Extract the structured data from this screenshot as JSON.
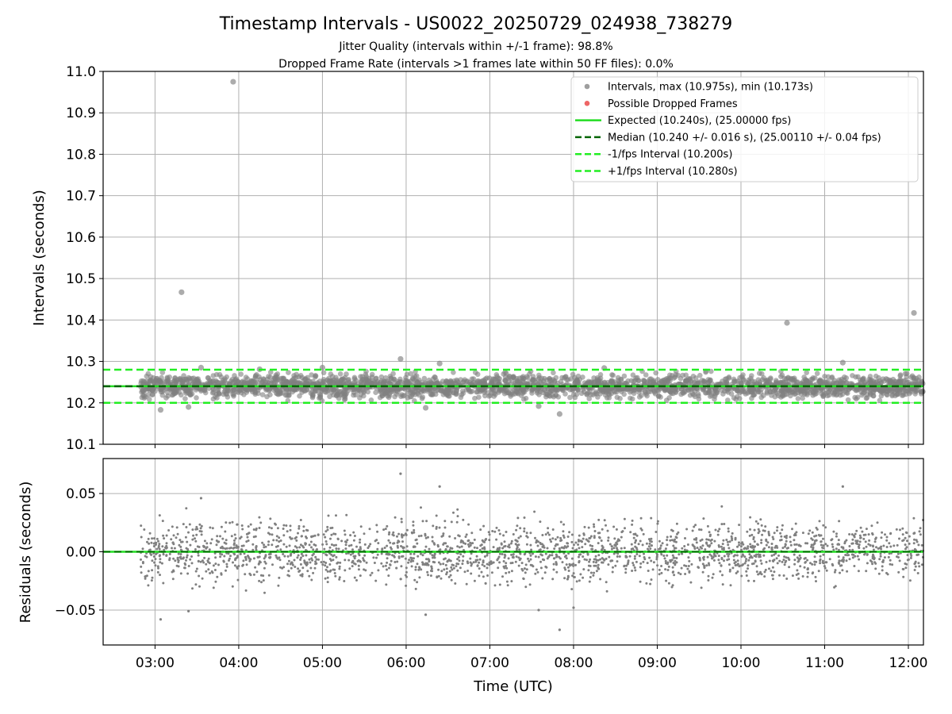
{
  "chart_data": {
    "type": "scatter",
    "title": "Timestamp Intervals - US0022_20250729_024938_738279",
    "subtitle_1": "Jitter Quality (intervals within +/-1 frame): 98.8%",
    "subtitle_2": "Dropped Frame Rate (intervals >1 frames late within 50 FF files): 0.0%",
    "xlabel": "Time (UTC)",
    "grid": true,
    "x_ticks": [
      "03:00",
      "04:00",
      "05:00",
      "06:00",
      "07:00",
      "08:00",
      "09:00",
      "10:00",
      "11:00",
      "12:00"
    ],
    "x_range_hours": [
      2.38,
      12.18
    ],
    "data_x_range_hours": [
      2.83,
      12.18
    ],
    "top_panel": {
      "ylabel": "Intervals (seconds)",
      "ylim": [
        10.1,
        11.0
      ],
      "y_ticks": [
        "10.1",
        "10.2",
        "10.3",
        "10.4",
        "10.5",
        "10.6",
        "10.7",
        "10.8",
        "10.9",
        "11.0"
      ],
      "expected": 10.24,
      "median": 10.24,
      "minus_interval": 10.2,
      "plus_interval": 10.28,
      "bulk_band": [
        10.2,
        10.28
      ],
      "outliers": [
        {
          "x": "03:56",
          "y": 10.975
        },
        {
          "x": "03:19",
          "y": 10.467
        },
        {
          "x": "10:33",
          "y": 10.393
        },
        {
          "x": "12:04",
          "y": 10.417
        },
        {
          "x": "05:56",
          "y": 10.306
        },
        {
          "x": "06:24",
          "y": 10.295
        },
        {
          "x": "11:13",
          "y": 10.297
        },
        {
          "x": "03:04",
          "y": 10.183
        },
        {
          "x": "03:24",
          "y": 10.19
        },
        {
          "x": "06:14",
          "y": 10.188
        },
        {
          "x": "07:50",
          "y": 10.173
        },
        {
          "x": "07:35",
          "y": 10.192
        },
        {
          "x": "03:33",
          "y": 10.285
        },
        {
          "x": "04:15",
          "y": 10.281
        },
        {
          "x": "05:00",
          "y": 10.285
        },
        {
          "x": "08:22",
          "y": 10.284
        }
      ]
    },
    "bottom_panel": {
      "ylabel": "Residuals (seconds)",
      "ylim": [
        -0.08,
        0.08
      ],
      "y_ticks": [
        "−0.05",
        "0.00",
        "0.05"
      ],
      "bulk_band": [
        -0.04,
        0.04
      ],
      "outliers": [
        {
          "x": "05:56",
          "y": 0.067
        },
        {
          "x": "06:24",
          "y": 0.056
        },
        {
          "x": "11:13",
          "y": 0.056
        },
        {
          "x": "03:33",
          "y": 0.046
        },
        {
          "x": "07:50",
          "y": -0.067
        },
        {
          "x": "03:04",
          "y": -0.058
        },
        {
          "x": "06:14",
          "y": -0.054
        },
        {
          "x": "03:24",
          "y": -0.051
        },
        {
          "x": "07:35",
          "y": -0.05
        },
        {
          "x": "08:00",
          "y": -0.048
        }
      ]
    },
    "legend": {
      "placement": "top-right",
      "items": [
        {
          "label": "Intervals, max (10.975s), min (10.173s)",
          "kind": "dot",
          "color": "#9e9e9e"
        },
        {
          "label": "Possible Dropped Frames",
          "kind": "dot",
          "color": "#ee6666"
        },
        {
          "label": "Expected (10.240s), (25.00000 fps)",
          "kind": "solid",
          "color": "#22dd22"
        },
        {
          "label": "Median (10.240 +/- 0.016 s), (25.00110 +/- 0.04 fps)",
          "kind": "dashed",
          "color": "#006400"
        },
        {
          "label": "-1/fps Interval (10.200s)",
          "kind": "dashed",
          "color": "#22ee22"
        },
        {
          "label": "+1/fps Interval (10.280s)",
          "kind": "dashed",
          "color": "#22ee22"
        }
      ]
    },
    "colors": {
      "points": "#808080",
      "expected": "#22dd22",
      "median": "#006400",
      "fps_bounds": "#22ee22",
      "grid": "#b0b0b0"
    }
  }
}
